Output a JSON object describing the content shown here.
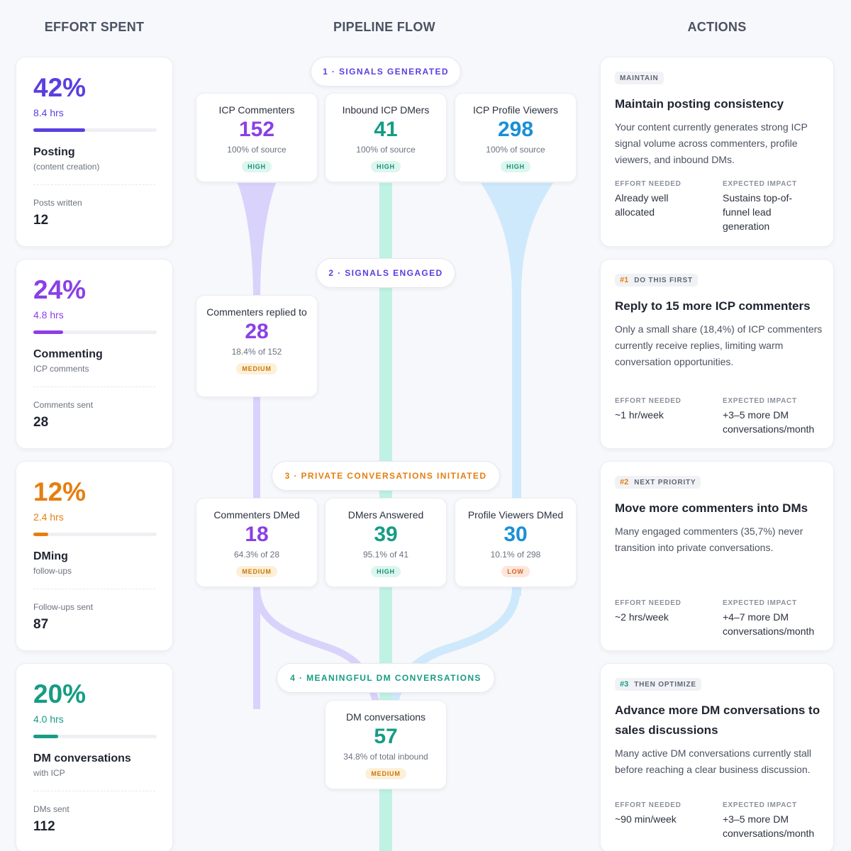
{
  "columns": {
    "effort": "EFFORT SPENT",
    "pipeline": "PIPELINE FLOW",
    "actions": "ACTIONS"
  },
  "colors": {
    "purple_strong": "#5b3fe0",
    "purple": "#8b3fe6",
    "orange": "#e67e10",
    "teal": "#169c84",
    "blue": "#1a8fd6",
    "flow_purple": "#d9d2fb",
    "flow_teal": "#bff2e2",
    "flow_blue": "#cfe9fc"
  },
  "effort": [
    {
      "pct": "42%",
      "hours": "8.4 hrs",
      "fill": 0.42,
      "name": "Posting",
      "sub": "(content creation)",
      "stat_label": "Posts written",
      "stat_value": "12"
    },
    {
      "pct": "24%",
      "hours": "4.8 hrs",
      "fill": 0.24,
      "name": "Commenting",
      "sub": "ICP comments",
      "stat_label": "Comments sent",
      "stat_value": "28"
    },
    {
      "pct": "12%",
      "hours": "2.4 hrs",
      "fill": 0.12,
      "name": "DMing",
      "sub": "follow-ups",
      "stat_label": "Follow-ups sent",
      "stat_value": "87"
    },
    {
      "pct": "20%",
      "hours": "4.0 hrs",
      "fill": 0.2,
      "name": "DM conversations",
      "sub": "with ICP",
      "stat_label": "DMs sent",
      "stat_value": "112"
    }
  ],
  "pipeline": {
    "stages": [
      "1 · SIGNALS GENERATED",
      "2 · SIGNALS ENGAGED",
      "3 · PRIVATE CONVERSATIONS INITIATED",
      "4 · MEANINGFUL DM CONVERSATIONS"
    ],
    "nodes": {
      "icp_commenters": {
        "label": "ICP Commenters",
        "value": "152",
        "sub": "100% of source",
        "badge": "HIGH"
      },
      "inbound_dmers": {
        "label": "Inbound ICP DMers",
        "value": "41",
        "sub": "100% of source",
        "badge": "HIGH"
      },
      "profile_viewers": {
        "label": "ICP Profile Viewers",
        "value": "298",
        "sub": "100% of source",
        "badge": "HIGH"
      },
      "replied": {
        "label": "Commenters replied to",
        "value": "28",
        "sub": "18.4% of 152",
        "badge": "MEDIUM"
      },
      "commenters_dmed": {
        "label": "Commenters DMed",
        "value": "18",
        "sub": "64.3% of 28",
        "badge": "MEDIUM"
      },
      "dmers_answered": {
        "label": "DMers Answered",
        "value": "39",
        "sub": "95.1% of 41",
        "badge": "HIGH"
      },
      "viewers_dmed": {
        "label": "Profile Viewers DMed",
        "value": "30",
        "sub": "10.1% of 298",
        "badge": "LOW"
      },
      "dm_conversations": {
        "label": "DM conversations",
        "value": "57",
        "sub": "34.8% of total inbound",
        "badge": "MEDIUM"
      }
    }
  },
  "actions": [
    {
      "num": "",
      "tag": "MAINTAIN",
      "title": "Maintain posting consistency",
      "desc": "Your content currently generates strong ICP signal volume across commenters, profile viewers, and inbound DMs.",
      "effort_label": "EFFORT NEEDED",
      "effort": "Already well allocated",
      "impact_label": "EXPECTED IMPACT",
      "impact": "Sustains top-of-funnel lead generation"
    },
    {
      "num": "#1",
      "tag": "DO THIS FIRST",
      "title": "Reply to 15 more ICP commenters",
      "desc": "Only a small share (18,4%) of ICP commenters currently receive replies, limiting warm conversation opportunities.",
      "effort_label": "EFFORT NEEDED",
      "effort": "~1 hr/week",
      "impact_label": "EXPECTED IMPACT",
      "impact": "+3–5 more DM conversations/month"
    },
    {
      "num": "#2",
      "tag": "NEXT PRIORITY",
      "title": "Move more commenters into DMs",
      "desc": "Many engaged commenters (35,7%) never transition into private conversations.",
      "effort_label": "EFFORT NEEDED",
      "effort": "~2 hrs/week",
      "impact_label": "EXPECTED IMPACT",
      "impact": "+4–7 more DM conversations/month"
    },
    {
      "num": "#3",
      "tag": "THEN OPTIMIZE",
      "title": "Advance more DM conversations to sales discussions",
      "desc": "Many active DM conversations currently stall before reaching a clear business discussion.",
      "effort_label": "EFFORT NEEDED",
      "effort": "~90 min/week",
      "impact_label": "EXPECTED IMPACT",
      "impact": "+3–5 more DM conversations/month"
    }
  ]
}
